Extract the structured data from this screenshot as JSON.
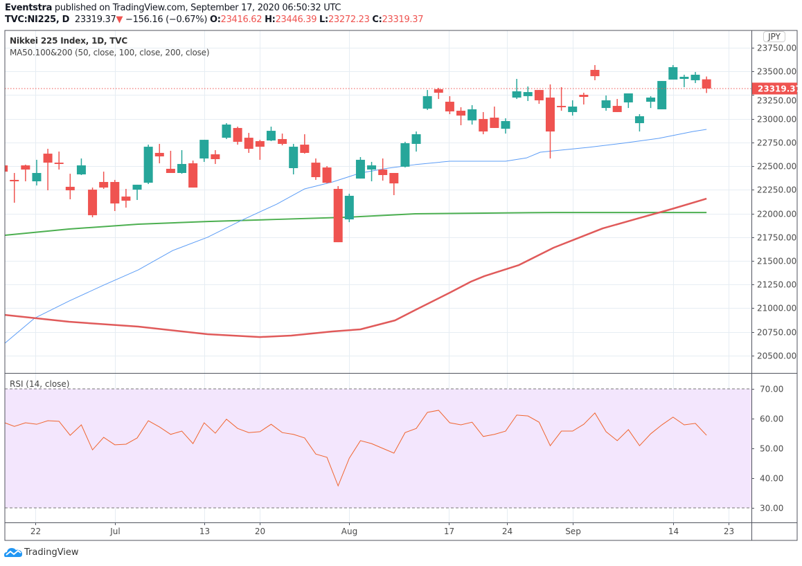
{
  "header": {
    "author": "Eventstra",
    "published": " published on TradingView.com, September 17, 2020 06:50:32 UTC",
    "symbol": "TVC:NI225, D",
    "last": "23319.37",
    "change": "−156.16 (−0.67%)",
    "o_label": "O:",
    "o": "23416.62",
    "h_label": "H:",
    "h": "23446.39",
    "l_label": "L:",
    "l": "23272.23",
    "c_label": "C:",
    "c": "23319.37"
  },
  "legend": {
    "title": "Nikkei 225 Index, 1D, TVC",
    "ma": "MA50.100&200 (50, close, 100, close, 200, close)",
    "rsi": "RSI (14, close)"
  },
  "currency": "JPY",
  "last_price_badge": "23319.37",
  "brand": "TradingView",
  "colors": {
    "up": "#26a69a",
    "down": "#ef5350",
    "ma50": "#5b9cf6",
    "ma100": "#e05a5a",
    "ma200": "#4caf50",
    "rsi": "#f0652f",
    "rsi_band": "#f3e6fd"
  },
  "chart_data": {
    "type": "candlestick",
    "price_ticks": [
      "23750.00",
      "23500.00",
      "23250.00",
      "23000.00",
      "22750.00",
      "22500.00",
      "22250.00",
      "22000.00",
      "21750.00",
      "21500.00",
      "21250.00",
      "21000.00",
      "20750.00",
      "20500.00"
    ],
    "price_tick_values": [
      23750,
      23500,
      23250,
      23000,
      22750,
      22500,
      22250,
      22000,
      21750,
      21500,
      21250,
      21000,
      20750,
      20500
    ],
    "time_ticks": [
      {
        "label": "22",
        "bar": 2.9
      },
      {
        "label": "Jul",
        "bar": 10
      },
      {
        "label": "13",
        "bar": 18
      },
      {
        "label": "20",
        "bar": 23
      },
      {
        "label": "Aug",
        "bar": 31
      },
      {
        "label": "17",
        "bar": 39.9
      },
      {
        "label": "24",
        "bar": 45.1
      },
      {
        "label": "Sep",
        "bar": 51
      },
      {
        "label": "14",
        "bar": 60
      },
      {
        "label": "23",
        "bar": 65
      }
    ],
    "candles": [
      [
        22508,
        22515,
        22435,
        22442
      ],
      [
        22355,
        22428,
        22114,
        22340
      ],
      [
        22508,
        22516,
        22340,
        22464
      ],
      [
        22340,
        22567,
        22296,
        22428
      ],
      [
        22632,
        22683,
        22245,
        22537
      ],
      [
        22537,
        22654,
        22464,
        22523
      ],
      [
        22282,
        22420,
        22150,
        22245
      ],
      [
        22413,
        22581,
        22406,
        22508
      ],
      [
        22252,
        22274,
        21960,
        21982
      ],
      [
        22333,
        22442,
        22260,
        22274
      ],
      [
        22333,
        22355,
        22026,
        22106
      ],
      [
        22179,
        22260,
        22062,
        22135
      ],
      [
        22252,
        22304,
        22143,
        22304
      ],
      [
        22325,
        22727,
        22311,
        22705
      ],
      [
        22640,
        22735,
        22530,
        22603
      ],
      [
        22472,
        22662,
        22428,
        22428
      ],
      [
        22428,
        22669,
        22420,
        22523
      ],
      [
        22530,
        22559,
        22274,
        22274
      ],
      [
        22581,
        22778,
        22545,
        22778
      ],
      [
        22625,
        22669,
        22523,
        22574
      ],
      [
        22800,
        22954,
        22786,
        22939
      ],
      [
        22903,
        22917,
        22727,
        22757
      ],
      [
        22800,
        22851,
        22640,
        22683
      ],
      [
        22764,
        22778,
        22567,
        22705
      ],
      [
        22771,
        22917,
        22764,
        22873
      ],
      [
        22786,
        22844,
        22720,
        22735
      ],
      [
        22479,
        22735,
        22413,
        22705
      ],
      [
        22727,
        22837,
        22632,
        22640
      ],
      [
        22537,
        22581,
        22355,
        22384
      ],
      [
        22486,
        22501,
        22318,
        22325
      ],
      [
        22260,
        22289,
        21697,
        21697
      ],
      [
        21938,
        22209,
        21909,
        22187
      ],
      [
        22369,
        22596,
        22369,
        22567
      ],
      [
        22464,
        22545,
        22340,
        22508
      ],
      [
        22464,
        22581,
        22347,
        22406
      ],
      [
        22428,
        22428,
        22194,
        22318
      ],
      [
        22494,
        22757,
        22486,
        22742
      ],
      [
        22735,
        22866,
        22654,
        22837
      ],
      [
        23107,
        23304,
        23093,
        23239
      ],
      [
        23312,
        23326,
        23209,
        23275
      ],
      [
        23180,
        23239,
        23049,
        23078
      ],
      [
        23085,
        23122,
        22932,
        23034
      ],
      [
        22983,
        23144,
        22939,
        23100
      ],
      [
        22998,
        23071,
        22837,
        22866
      ],
      [
        23012,
        23129,
        22903,
        22903
      ],
      [
        22895,
        23005,
        22844,
        22976
      ],
      [
        23224,
        23421,
        23209,
        23290
      ],
      [
        23239,
        23341,
        23188,
        23282
      ],
      [
        23304,
        23304,
        23158,
        23195
      ],
      [
        23224,
        23363,
        22581,
        22866
      ],
      [
        23136,
        23334,
        23085,
        23122
      ],
      [
        23071,
        23195,
        23034,
        23129
      ],
      [
        23253,
        23275,
        23151,
        23231
      ],
      [
        23516,
        23567,
        23407,
        23450
      ],
      [
        23114,
        23246,
        23085,
        23195
      ],
      [
        23136,
        23209,
        23071,
        23071
      ],
      [
        23173,
        23268,
        23114,
        23268
      ],
      [
        22954,
        23049,
        22866,
        23027
      ],
      [
        23180,
        23239,
        23114,
        23224
      ],
      [
        23100,
        23399,
        23100,
        23399
      ],
      [
        23414,
        23567,
        23414,
        23545
      ],
      [
        23421,
        23465,
        23334,
        23443
      ],
      [
        23407,
        23494,
        23377,
        23465
      ],
      [
        23416.62,
        23446.39,
        23272.23,
        23319.37
      ]
    ],
    "ma50": [
      [
        0.15,
        20631
      ],
      [
        2.8,
        20894
      ],
      [
        5.9,
        21076
      ],
      [
        9.0,
        21244
      ],
      [
        12.1,
        21405
      ],
      [
        15.2,
        21610
      ],
      [
        18.3,
        21749
      ],
      [
        21.4,
        21931
      ],
      [
        24.5,
        22099
      ],
      [
        27,
        22260
      ],
      [
        29.5,
        22333
      ],
      [
        32,
        22428
      ],
      [
        34.5,
        22479
      ],
      [
        36.9,
        22516
      ],
      [
        40,
        22552
      ],
      [
        43.1,
        22552
      ],
      [
        45,
        22552
      ],
      [
        46.9,
        22588
      ],
      [
        48.1,
        22647
      ],
      [
        49.3,
        22662
      ],
      [
        52.4,
        22698
      ],
      [
        55.5,
        22742
      ],
      [
        58.7,
        22793
      ],
      [
        61.8,
        22866
      ],
      [
        63,
        22888
      ]
    ],
    "ma100": [
      [
        0.15,
        20930
      ],
      [
        5.9,
        20857
      ],
      [
        12.1,
        20806
      ],
      [
        18.3,
        20726
      ],
      [
        23,
        20696
      ],
      [
        25.8,
        20711
      ],
      [
        29.5,
        20755
      ],
      [
        32,
        20777
      ],
      [
        35.1,
        20872
      ],
      [
        36.9,
        20981
      ],
      [
        40,
        21164
      ],
      [
        41.9,
        21281
      ],
      [
        43.1,
        21339
      ],
      [
        46.2,
        21456
      ],
      [
        49.3,
        21639
      ],
      [
        51.2,
        21727
      ],
      [
        53.7,
        21843
      ],
      [
        56.8,
        21946
      ],
      [
        59.9,
        22048
      ],
      [
        63,
        22157
      ]
    ],
    "ma200": [
      [
        0.15,
        21770
      ],
      [
        5.9,
        21836
      ],
      [
        12.1,
        21887
      ],
      [
        18.3,
        21916
      ],
      [
        24.5,
        21938
      ],
      [
        30.7,
        21960
      ],
      [
        36.9,
        21997
      ],
      [
        43.1,
        22004
      ],
      [
        49.3,
        22011
      ],
      [
        55.5,
        22011
      ],
      [
        61.8,
        22011
      ],
      [
        63,
        22011
      ]
    ],
    "rsi": {
      "ticks": [
        "70.00",
        "60.00",
        "50.00",
        "40.00",
        "30.00"
      ],
      "tick_values": [
        70,
        60,
        50,
        40,
        30
      ],
      "band": [
        30,
        70
      ],
      "values": [
        58.8,
        57.4,
        58.6,
        58.1,
        59.3,
        59.1,
        54.4,
        57.9,
        49.5,
        53.7,
        51.2,
        51.4,
        53.5,
        59.3,
        57.2,
        54.7,
        55.8,
        51.6,
        58.6,
        55.1,
        59.8,
        56.7,
        55.3,
        55.6,
        58.1,
        55.3,
        54.7,
        53.5,
        48.1,
        47.0,
        37.4,
        46.7,
        52.6,
        51.6,
        50.0,
        48.4,
        55.3,
        56.7,
        62.1,
        62.8,
        58.6,
        57.9,
        58.8,
        54.0,
        54.7,
        55.8,
        61.2,
        60.9,
        58.8,
        50.9,
        55.8,
        55.8,
        58.1,
        61.9,
        55.6,
        52.6,
        56.3,
        50.9,
        54.9,
        57.9,
        60.5,
        57.9,
        58.4,
        54.4
      ]
    }
  }
}
